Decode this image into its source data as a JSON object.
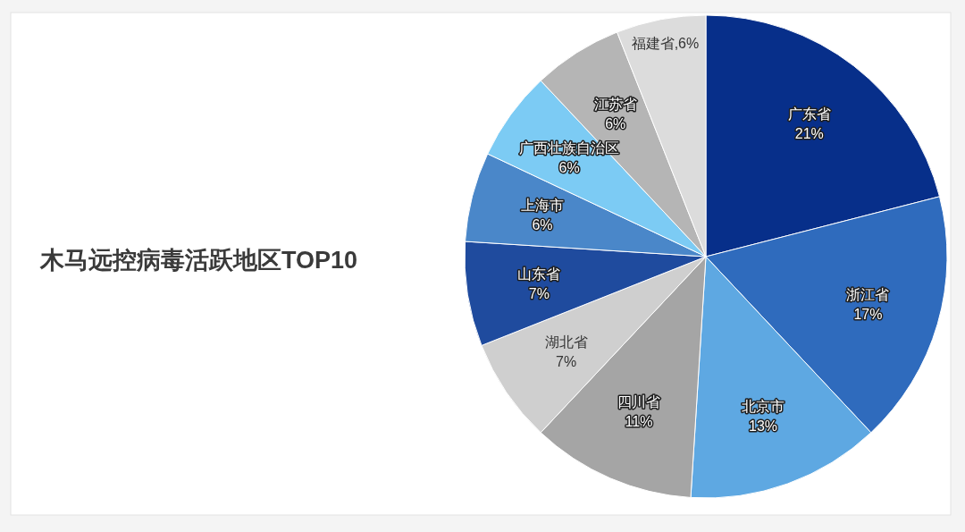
{
  "chart_data": {
    "type": "pie",
    "title": "木马远控病毒活跃地区TOP10",
    "categories": [
      "广东省",
      "浙江省",
      "北京市",
      "四川省",
      "湖北省",
      "山东省",
      "上海市",
      "广西壮族自治区",
      "江苏省",
      "福建省"
    ],
    "values": [
      21,
      17,
      13,
      11,
      7,
      7,
      6,
      6,
      6,
      6
    ],
    "colors": [
      "#072f8a",
      "#2f6bbd",
      "#5ea8e2",
      "#a5a5a5",
      "#cfcfcf",
      "#1f4b9e",
      "#4a87c9",
      "#7ccbf4",
      "#b5b5b5",
      "#dcdcdc"
    ],
    "value_labels": [
      "21%",
      "17%",
      "13%",
      "11%",
      "7%",
      "7%",
      "6%",
      "6%",
      "6%",
      "6%"
    ]
  }
}
